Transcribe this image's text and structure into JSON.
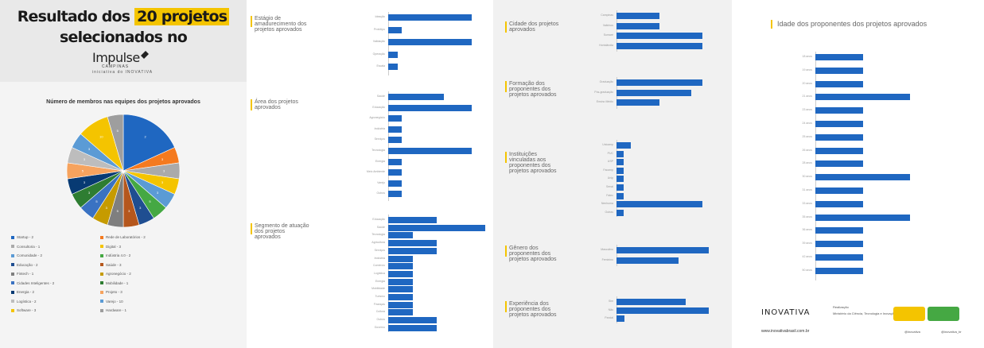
{
  "header": {
    "line1_pre": "Resultado dos ",
    "line1_hl": "20 projetos",
    "line2": "selecionados no",
    "brand": "Impulse",
    "brand_sub": "CAMPINAS",
    "byline": "iniciativa do INOVATIVA"
  },
  "colors": {
    "bar": "#1f67c1",
    "accent": "#f4c400"
  },
  "chart_data": [
    {
      "type": "pie",
      "title": "Número de membros nas equipes dos projetos aprovados",
      "slices": [
        {
          "label": "2",
          "value": 20,
          "color": "#1f67c1"
        },
        {
          "label": "3",
          "value": 5,
          "color": "#f47a1f"
        },
        {
          "label": "3",
          "value": 5,
          "color": "#aaaaaa"
        },
        {
          "label": "3",
          "value": 5,
          "color": "#f4c400"
        },
        {
          "label": "3",
          "value": 5,
          "color": "#5b9bd5"
        },
        {
          "label": "5",
          "value": 5,
          "color": "#45a843"
        },
        {
          "label": "3",
          "value": 5,
          "color": "#1f4e91"
        },
        {
          "label": "3",
          "value": 5,
          "color": "#b5571d"
        },
        {
          "label": "5",
          "value": 5,
          "color": "#7f7f7f"
        },
        {
          "label": "3",
          "value": 5,
          "color": "#c69b00"
        },
        {
          "label": "5",
          "value": 5,
          "color": "#3a72c2"
        },
        {
          "label": "3",
          "value": 5,
          "color": "#2e7d32"
        },
        {
          "label": "3",
          "value": 5,
          "color": "#073a73"
        },
        {
          "label": "5",
          "value": 5,
          "color": "#f6a35e"
        },
        {
          "label": "3",
          "value": 5,
          "color": "#bdbdbd"
        },
        {
          "label": "3",
          "value": 5,
          "color": "#5b9bd5"
        },
        {
          "label": "10",
          "value": 10,
          "color": "#f4c400"
        },
        {
          "label": "5",
          "value": 5,
          "color": "#9e9e9e"
        }
      ],
      "legend": [
        "Startup - 2",
        "Rede de Laboratórios - 2",
        "Consultoria - 1",
        "Digital - 3",
        "Comunidade - 2",
        "Indústria 4.0 - 2",
        "Educação - 2",
        "Saúde - 3",
        "Fintech - 1",
        "Agronegócio - 2",
        "Cidades Inteligentes - 2",
        "Mobilidade - 1",
        "Energia - 2",
        "Projeto - 3",
        "Logística - 2",
        "Varejo - 10",
        "Software - 3",
        "Hardware - 1"
      ]
    },
    {
      "type": "bar",
      "title": "Estágio de amadurecimento dos projetos aprovados",
      "categories": [
        "Ideação",
        "Protótipo",
        "Validação",
        "Operação",
        "Escala"
      ],
      "values": [
        6,
        1,
        6,
        0.7,
        0.7
      ],
      "xlim": [
        0,
        7
      ]
    },
    {
      "type": "bar",
      "title": "Área dos projetos aprovados",
      "categories": [
        "Saúde",
        "Educação",
        "Agronegócio",
        "Indústria",
        "Serviços",
        "Tecnologia",
        "Energia",
        "Meio Ambiente",
        "Varejo",
        "Outros"
      ],
      "values": [
        4,
        6,
        1,
        1,
        1,
        6,
        1,
        1,
        1,
        1
      ],
      "xlim": [
        0,
        7
      ]
    },
    {
      "type": "bar",
      "title": "Segmento de atuação dos projetos aprovados",
      "categories": [
        "Educação",
        "Saúde",
        "Tecnologia",
        "Agricultura",
        "Serviços",
        "Indústria",
        "Comércio",
        "Logística",
        "Energia",
        "Mobilidade",
        "Turismo",
        "Finanças",
        "Cultura",
        "Outros",
        "Governo"
      ],
      "values": [
        5,
        10,
        2.5,
        5,
        5,
        2.5,
        2.5,
        2.5,
        2.5,
        2.5,
        2.5,
        2.5,
        2.5,
        5,
        5
      ],
      "xlim": [
        0,
        10
      ]
    },
    {
      "type": "bar",
      "title": "Cidade dos projetos aprovados",
      "categories": [
        "Campinas",
        "Valinhos",
        "Sumaré",
        "Hortolândia"
      ],
      "values": [
        3,
        3,
        6,
        6
      ],
      "xlim": [
        0,
        7
      ]
    },
    {
      "type": "bar",
      "title": "Formação dos proponentes dos projetos aprovados",
      "categories": [
        "Graduação",
        "Pós-graduação",
        "Ensino Médio"
      ],
      "values": [
        6,
        5.2,
        3
      ],
      "xlim": [
        0,
        7
      ]
    },
    {
      "type": "bar",
      "title": "Instituições vinculadas aos proponentes dos projetos aprovados",
      "categories": [
        "Unicamp",
        "PUC",
        "USP",
        "Facamp",
        "Unip",
        "Senai",
        "Fatec",
        "Nenhuma",
        "Outras"
      ],
      "values": [
        1,
        0.5,
        0.5,
        0.5,
        0.5,
        0.5,
        0.5,
        6,
        0.5
      ],
      "xlim": [
        0,
        7
      ]
    },
    {
      "type": "bar",
      "title": "Gênero dos proponentes dos projetos aprovados",
      "categories": [
        "Masculino",
        "Feminino"
      ],
      "values": [
        12,
        8
      ],
      "xlim": [
        0,
        13
      ]
    },
    {
      "type": "bar",
      "title": "Experiência dos proponentes dos projetos aprovados",
      "categories": [
        "Sim",
        "Não",
        "Parcial"
      ],
      "values": [
        9,
        12,
        1
      ],
      "xlim": [
        0,
        13
      ]
    },
    {
      "type": "bar",
      "title": "Idade dos proponentes dos projetos aprovados",
      "categories": [
        "18 anos",
        "19 anos",
        "20 anos",
        "21 anos",
        "23 anos",
        "24 anos",
        "25 anos",
        "26 anos",
        "28 anos",
        "30 anos",
        "31 anos",
        "33 anos",
        "35 anos",
        "36 anos",
        "39 anos",
        "42 anos",
        "50 anos"
      ],
      "values": [
        1,
        1,
        1,
        2,
        1,
        1,
        1,
        1,
        1,
        2,
        1,
        1,
        2,
        1,
        1,
        1,
        1
      ],
      "xlim": [
        0,
        2.1
      ]
    }
  ],
  "footer": {
    "logo": "INOVATIVA",
    "small1": "Realização",
    "small2": "Ministério da Ciência, Tecnologia e Inovação",
    "url": "www.inovativabrasil.com.br",
    "social1": "@inovativa",
    "social2": "@inovativa_br"
  }
}
